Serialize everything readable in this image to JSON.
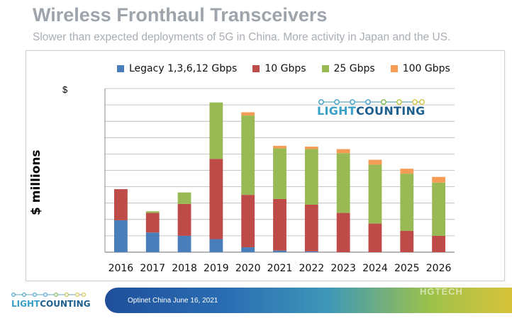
{
  "header": {
    "title": "Wireless Fronthaul Transceivers",
    "subtitle": "Slower than expected deployments of 5G in China. More activity in Japan and the US."
  },
  "footer": {
    "event_text": "Optinet China June 16, 2021",
    "logo_text_light": "LIGHT",
    "logo_text_counting": "COUNTING",
    "watermark": "HGTECH"
  },
  "chart_logo": {
    "light": "LIGHT",
    "counting": "COUNTING"
  },
  "colors": {
    "title": "#9ea4ab",
    "logo_light": "#3aa0c8",
    "logo_counting": "#1d5f8e",
    "legacy": "#4a7ebb",
    "g10": "#be4b48",
    "g25": "#98b954",
    "g100": "#f59d56",
    "grid": "#b5b5b5"
  },
  "chart_data": {
    "type": "bar",
    "stacked": true,
    "title": "",
    "xlabel": "",
    "ylabel": "$ millions",
    "y_unit": "$",
    "y_tick_labels_shown": false,
    "ylim": [
      0,
      100
    ],
    "grid": true,
    "legend_position": "top",
    "categories": [
      "2016",
      "2017",
      "2018",
      "2019",
      "2020",
      "2021",
      "2022",
      "2023",
      "2024",
      "2025",
      "2026"
    ],
    "series": [
      {
        "name": "Legacy 1,3,6,12 Gbps",
        "color": "#4a7ebb",
        "values": [
          19.5,
          12,
          10,
          8,
          3,
          1,
          0.5,
          0,
          0,
          0,
          0
        ]
      },
      {
        "name": "10 Gbps",
        "color": "#be4b48",
        "values": [
          19,
          12,
          19.5,
          49,
          32,
          31.5,
          28.5,
          24,
          17.5,
          13,
          10
        ]
      },
      {
        "name": "25 Gbps",
        "color": "#98b954",
        "values": [
          0,
          1,
          7,
          34.5,
          48.5,
          31,
          34,
          36.5,
          36,
          35,
          32.5
        ]
      },
      {
        "name": "100 Gbps",
        "color": "#f59d56",
        "values": [
          0,
          0,
          0,
          0,
          2,
          1.5,
          1.5,
          2.5,
          3,
          3,
          3.5
        ]
      }
    ]
  }
}
